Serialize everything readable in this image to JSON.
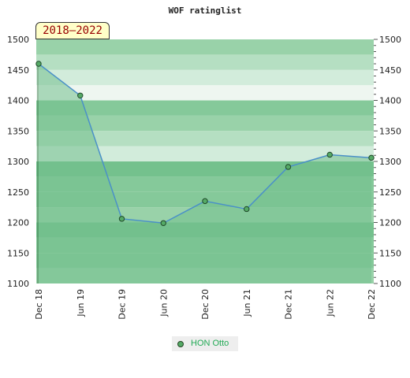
{
  "chart_data": {
    "type": "area",
    "title": "WOF ratinglist",
    "period_label": "2018–2022",
    "categories": [
      "Dec 18",
      "Jun 19",
      "Dec 19",
      "Jun 20",
      "Dec 20",
      "Jun 21",
      "Dec 21",
      "Jun 22",
      "Dec 22"
    ],
    "series": [
      {
        "name": "HON Otto",
        "values": [
          1460,
          1408,
          1206,
          1199,
          1235,
          1222,
          1291,
          1311,
          1306
        ]
      }
    ],
    "ylim": [
      1100,
      1500
    ],
    "yticks": [
      1100,
      1150,
      1200,
      1250,
      1300,
      1350,
      1400,
      1450,
      1500
    ],
    "legend_position": "bottom",
    "colors": {
      "line": "#4a90c8",
      "marker": "#55aa66",
      "area": "#72c08e",
      "band_dark": "#85c99a",
      "band_light": "#eef6f0"
    }
  }
}
